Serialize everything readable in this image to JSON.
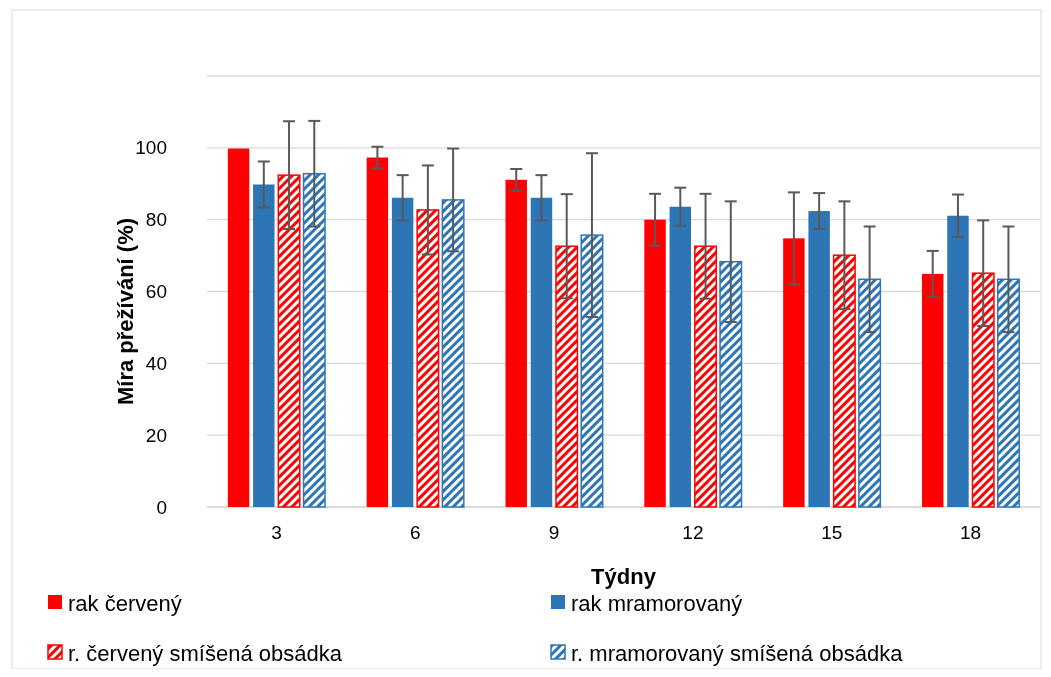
{
  "chart_data": {
    "type": "bar",
    "xlabel": "Týdny",
    "ylabel": "Míra přežívání (%)",
    "categories": [
      "3",
      "6",
      "9",
      "12",
      "15",
      "18"
    ],
    "ylim": [
      0,
      120
    ],
    "yticks": [
      0,
      20,
      40,
      60,
      80,
      100,
      {
        "value": 120,
        "label": null
      }
    ],
    "grid": "y",
    "legend": "bottom",
    "series": [
      {
        "name": "rak červený",
        "color": "#ff0000",
        "values": [
          99.8,
          97.3,
          91.1,
          80,
          74.8,
          64.9
        ],
        "errors": [
          null,
          3,
          3,
          7.2,
          12.8,
          6.4
        ]
      },
      {
        "name": "rak mramorovaný",
        "color": "#2e75b6",
        "values": [
          89.8,
          86.1,
          86.1,
          83.6,
          82.4,
          81.1
        ],
        "errors": [
          6.4,
          6.3,
          6.3,
          5.3,
          5,
          5.9
        ]
      },
      {
        "name": "r. červený smíšená obsádka",
        "color": "#ff0000",
        "values": [
          92.4,
          82.7,
          72.6,
          72.6,
          70.1,
          65.1
        ],
        "errors": [
          15,
          12.4,
          14.5,
          14.6,
          15,
          14.7
        ]
      },
      {
        "name": "r. mramorovaný smíšená obsádka",
        "color": "#2e75b6",
        "values": [
          92.8,
          85.5,
          75.7,
          68.3,
          63.4,
          63.4
        ],
        "errors": [
          14.7,
          14.3,
          22.8,
          16.8,
          14.7,
          14.7
        ]
      }
    ]
  }
}
